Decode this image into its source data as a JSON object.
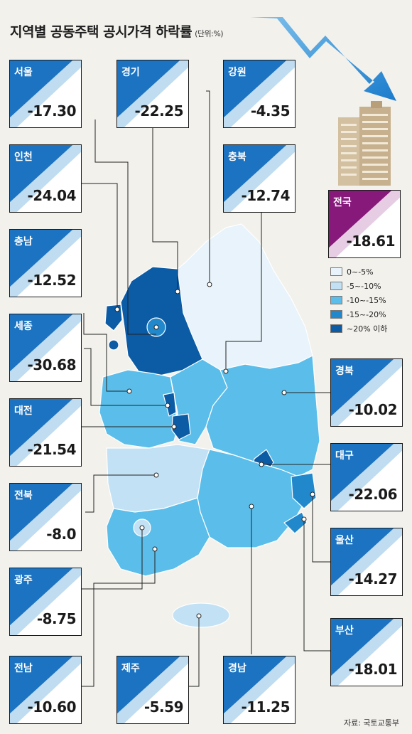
{
  "title": "지역별 공동주택 공시가격 하락률",
  "unit": "(단위:%)",
  "national": {
    "name": "전국",
    "value": "-18.61"
  },
  "regions": {
    "seoul": {
      "name": "서울",
      "value": "-17.30"
    },
    "gyeonggi": {
      "name": "경기",
      "value": "-22.25"
    },
    "gangwon": {
      "name": "강원",
      "value": "-4.35"
    },
    "incheon": {
      "name": "인천",
      "value": "-24.04"
    },
    "chungbuk": {
      "name": "충북",
      "value": "-12.74"
    },
    "chungnam": {
      "name": "충남",
      "value": "-12.52"
    },
    "sejong": {
      "name": "세종",
      "value": "-30.68"
    },
    "daejeon": {
      "name": "대전",
      "value": "-21.54"
    },
    "gyeongbuk": {
      "name": "경북",
      "value": "-10.02"
    },
    "jeonbuk": {
      "name": "전북",
      "value": "-8.0"
    },
    "daegu": {
      "name": "대구",
      "value": "-22.06"
    },
    "gwangju": {
      "name": "광주",
      "value": "-8.75"
    },
    "ulsan": {
      "name": "울산",
      "value": "-14.27"
    },
    "busan": {
      "name": "부산",
      "value": "-18.01"
    },
    "jeonnam": {
      "name": "전남",
      "value": "-10.60"
    },
    "jeju": {
      "name": "제주",
      "value": "-5.59"
    },
    "gyeongnam": {
      "name": "경남",
      "value": "-11.25"
    }
  },
  "legend": [
    {
      "label": "0~-5%",
      "color": "#e8f3fb"
    },
    {
      "label": "-5~-10%",
      "color": "#c3e1f4"
    },
    {
      "label": "-10~-15%",
      "color": "#5bbde9"
    },
    {
      "label": "-15~-20%",
      "color": "#2288cc"
    },
    {
      "label": "~20% 이하",
      "color": "#0c5ba5"
    }
  ],
  "source": "자료: 국토교통부",
  "colors": {
    "card_accent": "#1b73c1",
    "national_accent": "#86197a",
    "arrow": "#1f86d2"
  }
}
